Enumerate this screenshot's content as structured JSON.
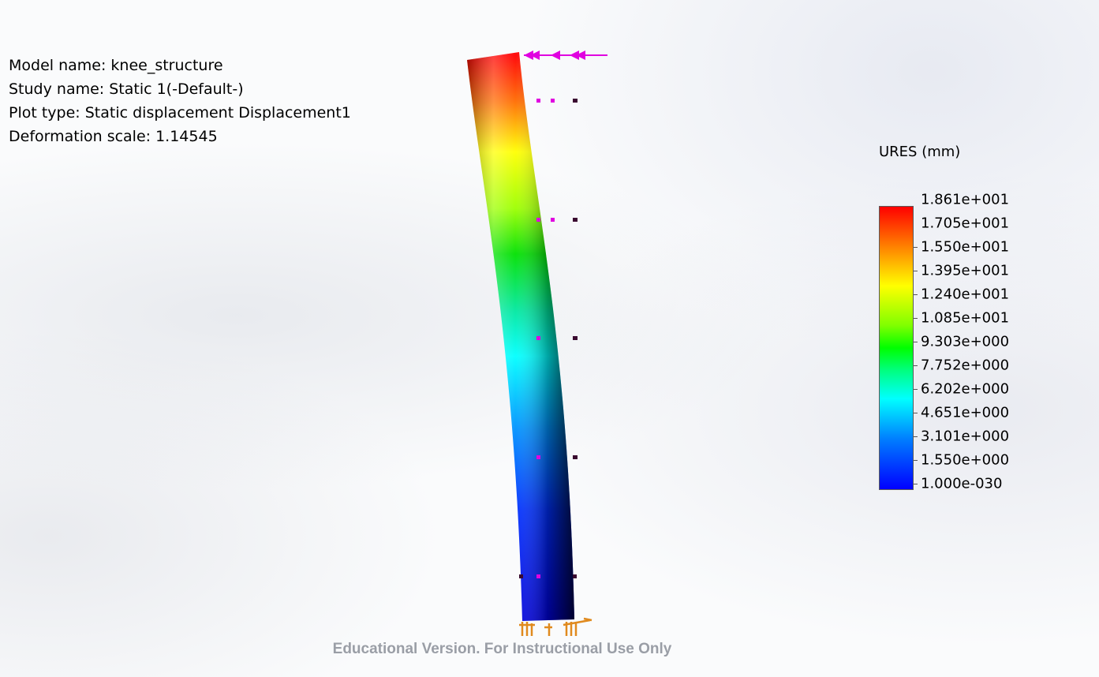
{
  "study_info": {
    "model_name": "Model name: knee_structure",
    "study_name": "Study name: Static 1(-Default-)",
    "plot_type": "Plot type: Static displacement Displacement1",
    "deformation_scale": "Deformation scale: 1.14545"
  },
  "legend": {
    "title": "URES (mm)",
    "labels": [
      "1.861e+001",
      "1.705e+001",
      "1.550e+001",
      "1.395e+001",
      "1.240e+001",
      "1.085e+001",
      "9.303e+000",
      "7.752e+000",
      "6.202e+000",
      "4.651e+000",
      "3.101e+000",
      "1.550e+000",
      "1.000e-030"
    ]
  },
  "colors": {
    "load_arrow": "#e000e0",
    "fixture": "#e08a1e",
    "max_displacement": "#ff0000",
    "min_displacement": "#0000ff"
  },
  "watermark": "Educational Version. For Instructional Use Only"
}
